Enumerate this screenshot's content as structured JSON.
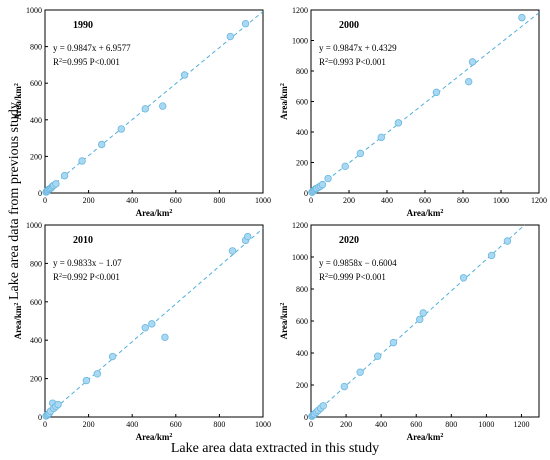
{
  "figure": {
    "ylabel": "Lake area data from previous study",
    "xlabel": "Lake area data extracted in this study"
  },
  "colors": {
    "marker_fill": "#a9d8f2",
    "marker_stroke": "#6bb8e0",
    "fit_line": "#4fb0dc",
    "axis": "#000000"
  },
  "chart_data": [
    {
      "type": "scatter",
      "title": "1990",
      "equation": "y = 0.9847x + 6.9577",
      "stats": "R²=0.995  P<0.001",
      "xlabel": "Area/km²",
      "ylabel": "Area/km²",
      "xlim": [
        0,
        1000
      ],
      "ylim": [
        0,
        1000
      ],
      "xticks": [
        0,
        200,
        400,
        600,
        800,
        1000
      ],
      "yticks": [
        0,
        200,
        400,
        600,
        800,
        1000
      ],
      "fit": {
        "slope": 0.9847,
        "intercept": 6.9577
      },
      "x": [
        5,
        8,
        12,
        15,
        20,
        25,
        30,
        35,
        40,
        50,
        90,
        170,
        260,
        350,
        460,
        540,
        640,
        850,
        920
      ],
      "y": [
        5,
        10,
        12,
        18,
        22,
        25,
        30,
        38,
        42,
        50,
        95,
        175,
        265,
        350,
        460,
        475,
        645,
        855,
        925
      ]
    },
    {
      "type": "scatter",
      "title": "2000",
      "equation": "y = 0.9847x + 0.4329",
      "stats": "R²=0.993  P<0.001",
      "xlabel": "Area/km²",
      "ylabel": "Area/km²",
      "xlim": [
        0,
        1200
      ],
      "ylim": [
        0,
        1200
      ],
      "xticks": [
        0,
        200,
        400,
        600,
        800,
        1000,
        1200
      ],
      "yticks": [
        0,
        200,
        400,
        600,
        800,
        1000,
        1200
      ],
      "fit": {
        "slope": 0.9847,
        "intercept": 0.4329
      },
      "x": [
        5,
        10,
        15,
        20,
        25,
        30,
        40,
        50,
        60,
        90,
        180,
        260,
        370,
        460,
        660,
        830,
        850,
        1110
      ],
      "y": [
        5,
        12,
        15,
        22,
        28,
        30,
        38,
        45,
        55,
        95,
        175,
        260,
        365,
        460,
        660,
        730,
        860,
        1150
      ]
    },
    {
      "type": "scatter",
      "title": "2010",
      "equation": "y = 0.9833x − 1.07",
      "stats": "R²=0.992  P<0.001",
      "xlabel": "Area/km²",
      "ylabel": "Area/km²",
      "xlim": [
        0,
        1000
      ],
      "ylim": [
        0,
        1000
      ],
      "xticks": [
        0,
        200,
        400,
        600,
        800,
        1000
      ],
      "yticks": [
        0,
        200,
        400,
        600,
        800,
        1000
      ],
      "fit": {
        "slope": 0.9833,
        "intercept": -1.07
      },
      "x": [
        5,
        10,
        15,
        20,
        25,
        35,
        40,
        50,
        60,
        190,
        240,
        310,
        460,
        490,
        550,
        860,
        920,
        930
      ],
      "y": [
        5,
        10,
        15,
        20,
        30,
        72,
        45,
        55,
        65,
        190,
        225,
        315,
        465,
        485,
        415,
        865,
        920,
        940
      ]
    },
    {
      "type": "scatter",
      "title": "2020",
      "equation": "y = 0.9858x − 0.6004",
      "stats": "R²=0.999  P<0.001",
      "xlabel": "Area/km²",
      "ylabel": "Area/km²",
      "xlim": [
        0,
        1300
      ],
      "ylim": [
        0,
        1200
      ],
      "xticks": [
        0,
        200,
        400,
        600,
        800,
        1000,
        1200
      ],
      "yticks": [
        0,
        200,
        400,
        600,
        800,
        1000,
        1200
      ],
      "fit": {
        "slope": 0.9858,
        "intercept": -0.6004
      },
      "x": [
        5,
        10,
        15,
        20,
        30,
        40,
        55,
        70,
        190,
        280,
        380,
        470,
        620,
        640,
        870,
        1030,
        1120
      ],
      "y": [
        5,
        10,
        15,
        20,
        30,
        40,
        55,
        70,
        190,
        280,
        380,
        465,
        610,
        650,
        870,
        1010,
        1100
      ]
    }
  ]
}
